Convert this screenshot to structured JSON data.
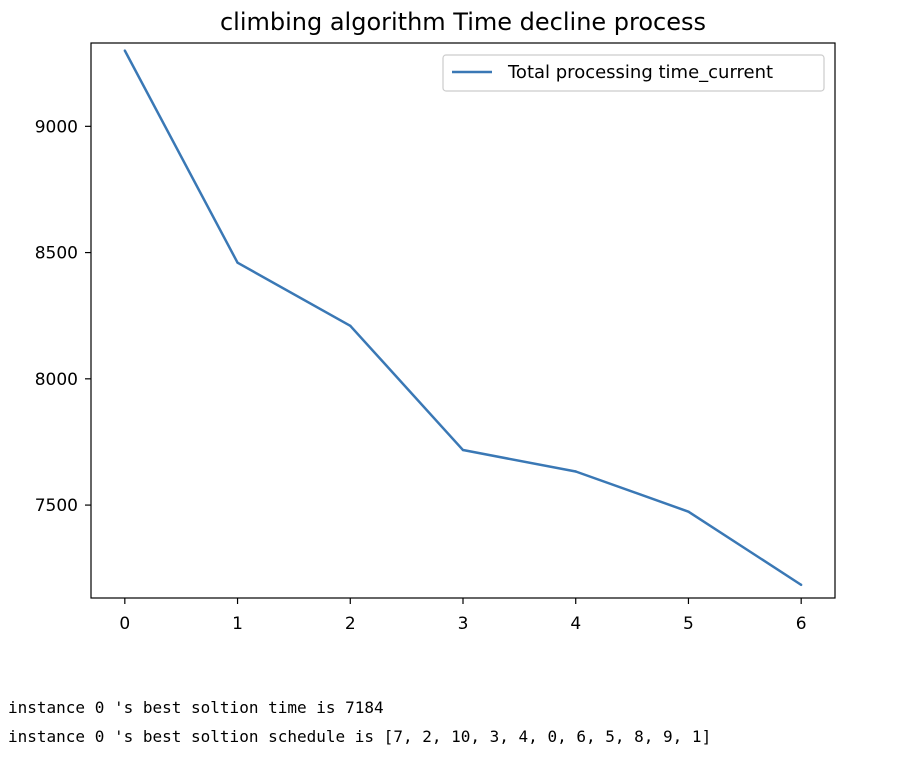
{
  "chart_data": {
    "type": "line",
    "title": "climbing algorithm Time decline process",
    "xlabel": "",
    "ylabel": "",
    "x": [
      0,
      1,
      2,
      3,
      4,
      5,
      6
    ],
    "xticks": [
      "0",
      "1",
      "2",
      "3",
      "4",
      "5",
      "6"
    ],
    "yticks": [
      "7500",
      "8000",
      "8500",
      "9000"
    ],
    "ylim": [
      7132,
      9330
    ],
    "xlim": [
      -0.3,
      6.3
    ],
    "series": [
      {
        "name": "Total processing time_current",
        "color": "#3a78b5",
        "values": [
          9300,
          8460,
          8210,
          7718,
          7633,
          7474,
          7184
        ]
      }
    ],
    "legend": "top-right",
    "grid": false
  },
  "output": {
    "line1": "instance 0 's best soltion time is 7184",
    "line2": "instance 0 's best soltion schedule is [7, 2, 10, 3, 4, 0, 6, 5, 8, 9, 1]"
  }
}
